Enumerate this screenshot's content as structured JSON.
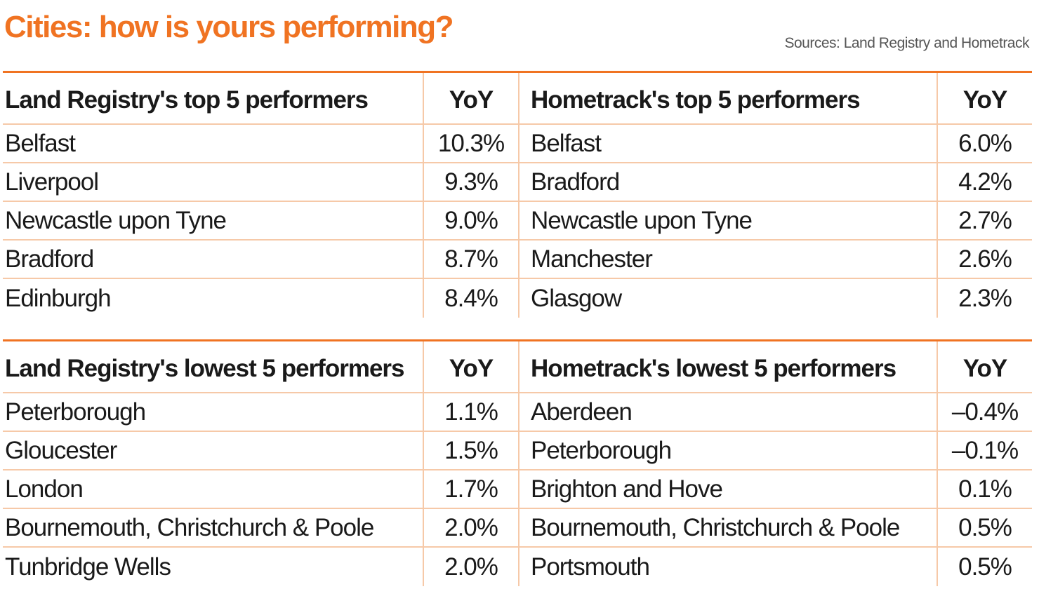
{
  "title": "Cities: how is yours performing?",
  "sources": "Sources: Land Registry and Hometrack",
  "colors": {
    "accent": "#f07322",
    "rule": "#f6c9a8",
    "text": "#1a1a1a"
  },
  "chart_data": [
    {
      "type": "table",
      "headers": [
        "Land Registry's top 5 performers",
        "YoY",
        "Hometrack's top 5 performers",
        "YoY"
      ],
      "rows": [
        [
          "Belfast",
          "10.3%",
          "Belfast",
          "6.0%"
        ],
        [
          "Liverpool",
          "9.3%",
          "Bradford",
          "4.2%"
        ],
        [
          "Newcastle upon Tyne",
          "9.0%",
          "Newcastle upon Tyne",
          "2.7%"
        ],
        [
          "Bradford",
          "8.7%",
          "Manchester",
          "2.6%"
        ],
        [
          "Edinburgh",
          "8.4%",
          "Glasgow",
          "2.3%"
        ]
      ]
    },
    {
      "type": "table",
      "headers": [
        "Land Registry's lowest 5 performers",
        "YoY",
        "Hometrack's lowest 5 performers",
        "YoY"
      ],
      "rows": [
        [
          "Peterborough",
          "1.1%",
          "Aberdeen",
          "–0.4%"
        ],
        [
          "Gloucester",
          "1.5%",
          "Peterborough",
          "–0.1%"
        ],
        [
          "London",
          "1.7%",
          "Brighton and Hove",
          "0.1%"
        ],
        [
          "Bournemouth, Christchurch & Poole",
          "2.0%",
          "Bournemouth, Christchurch & Poole",
          "0.5%"
        ],
        [
          "Tunbridge Wells",
          "2.0%",
          "Portsmouth",
          "0.5%"
        ]
      ]
    }
  ]
}
